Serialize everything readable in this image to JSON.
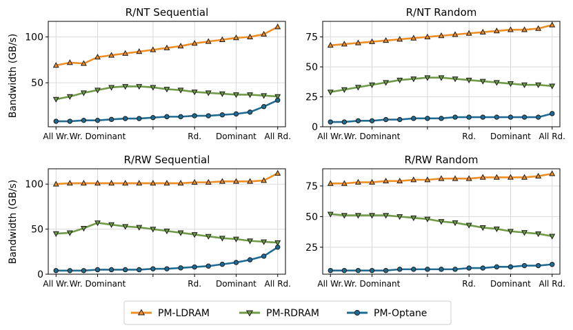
{
  "chart_data": [
    {
      "type": "line",
      "title": "R/NT Sequential",
      "ylabel": "Bandwidth (GB/s)",
      "xlabel": "",
      "x": [
        0,
        1,
        2,
        3,
        4,
        5,
        6,
        7,
        8,
        9,
        10,
        11,
        12,
        13,
        14,
        15,
        16
      ],
      "xticks": [
        0,
        3,
        7,
        10,
        13,
        16
      ],
      "xtick_labels": [
        "All Wr.",
        "Wr. Dominant",
        "",
        "Rd.",
        "Dominant",
        "All Rd."
      ],
      "ylim": [
        2,
        117
      ],
      "yticks": [
        50,
        100
      ],
      "series": [
        {
          "name": "PM-LDRAM",
          "values": [
            69,
            72,
            71,
            78,
            80,
            82,
            84,
            86,
            88,
            90,
            93,
            95,
            97,
            99,
            100,
            103,
            111
          ]
        },
        {
          "name": "PM-RDRAM",
          "values": [
            32,
            35,
            39,
            42,
            45,
            46,
            46,
            45,
            43,
            42,
            40,
            39,
            38,
            37,
            37,
            36,
            35
          ]
        },
        {
          "name": "PM-Optane",
          "values": [
            8,
            8,
            9,
            9,
            10,
            11,
            11,
            12,
            13,
            13,
            14,
            14,
            15,
            16,
            18,
            24,
            31
          ]
        }
      ]
    },
    {
      "type": "line",
      "title": "R/NT Random",
      "ylabel": "",
      "xlabel": "",
      "x": [
        0,
        1,
        2,
        3,
        4,
        5,
        6,
        7,
        8,
        9,
        10,
        11,
        12,
        13,
        14,
        15,
        16
      ],
      "xticks": [
        0,
        3,
        7,
        10,
        13,
        16
      ],
      "xtick_labels": [
        "All Wr.",
        "Wr. Dominant",
        "",
        "Rd.",
        "Dominant",
        "All Rd."
      ],
      "ylim": [
        0,
        88
      ],
      "yticks": [
        0,
        25,
        50,
        75
      ],
      "series": [
        {
          "name": "PM-LDRAM",
          "values": [
            68,
            69,
            70,
            71,
            72,
            73,
            74,
            75,
            76,
            77,
            78,
            79,
            80,
            81,
            81,
            82,
            85
          ]
        },
        {
          "name": "PM-RDRAM",
          "values": [
            29,
            31,
            33,
            35,
            37,
            39,
            40,
            41,
            41,
            40,
            39,
            38,
            37,
            36,
            35,
            35,
            34
          ]
        },
        {
          "name": "PM-Optane",
          "values": [
            4,
            4,
            5,
            5,
            6,
            6,
            7,
            7,
            7,
            8,
            8,
            8,
            8,
            8,
            8,
            8,
            11
          ]
        }
      ]
    },
    {
      "type": "line",
      "title": "R/RW Sequential",
      "ylabel": "Bandwidth (GB/s)",
      "xlabel": "",
      "x": [
        0,
        1,
        2,
        3,
        4,
        5,
        6,
        7,
        8,
        9,
        10,
        11,
        12,
        13,
        14,
        15,
        16
      ],
      "xticks": [
        0,
        3,
        7,
        10,
        13,
        16
      ],
      "xtick_labels": [
        "All Wr.",
        "Wr. Dominant",
        "",
        "Rd.",
        "Dominant",
        "All Rd."
      ],
      "ylim": [
        0,
        117
      ],
      "yticks": [
        0,
        50,
        100
      ],
      "series": [
        {
          "name": "PM-LDRAM",
          "values": [
            100,
            101,
            101,
            101,
            101,
            101,
            101,
            101,
            101,
            101,
            102,
            102,
            103,
            103,
            103,
            104,
            112
          ]
        },
        {
          "name": "PM-RDRAM",
          "values": [
            45,
            46,
            51,
            57,
            55,
            53,
            52,
            50,
            48,
            46,
            44,
            42,
            40,
            39,
            37,
            36,
            35
          ]
        },
        {
          "name": "PM-Optane",
          "values": [
            4,
            4,
            4,
            5,
            5,
            5,
            5,
            6,
            6,
            7,
            8,
            9,
            11,
            13,
            16,
            20,
            30
          ]
        }
      ]
    },
    {
      "type": "line",
      "title": "R/RW Random",
      "ylabel": "",
      "xlabel": "",
      "x": [
        0,
        1,
        2,
        3,
        4,
        5,
        6,
        7,
        8,
        9,
        10,
        11,
        12,
        13,
        14,
        15,
        16
      ],
      "xticks": [
        0,
        3,
        7,
        10,
        13,
        16
      ],
      "xtick_labels": [
        "All Wr.",
        "Wr. Dominant",
        "",
        "Rd.",
        "Dominant",
        "All Rd."
      ],
      "ylim": [
        3,
        89
      ],
      "yticks": [
        25,
        50,
        75
      ],
      "series": [
        {
          "name": "PM-LDRAM",
          "values": [
            77,
            77,
            78,
            78,
            79,
            79,
            80,
            80,
            81,
            81,
            81,
            82,
            82,
            82,
            82,
            83,
            85
          ]
        },
        {
          "name": "PM-RDRAM",
          "values": [
            52,
            51,
            51,
            51,
            51,
            50,
            49,
            48,
            46,
            45,
            43,
            41,
            40,
            38,
            37,
            36,
            34
          ]
        },
        {
          "name": "PM-Optane",
          "values": [
            6,
            6,
            6,
            6,
            6,
            7,
            7,
            7,
            7,
            7,
            8,
            8,
            9,
            9,
            10,
            10,
            11
          ]
        }
      ]
    }
  ],
  "legend": {
    "placement": "bottom-center",
    "items": [
      {
        "name": "PM-LDRAM",
        "color": "#ee8e22",
        "marker": "triangle-up"
      },
      {
        "name": "PM-RDRAM",
        "color": "#6f9a45",
        "marker": "triangle-down"
      },
      {
        "name": "PM-Optane",
        "color": "#1d6a92",
        "marker": "circle"
      }
    ]
  },
  "colors": {
    "PM-LDRAM": "#ee8e22",
    "PM-RDRAM": "#6f9a45",
    "PM-Optane": "#1d6a92",
    "grid": "#d9d9d9",
    "axis": "#000000"
  }
}
